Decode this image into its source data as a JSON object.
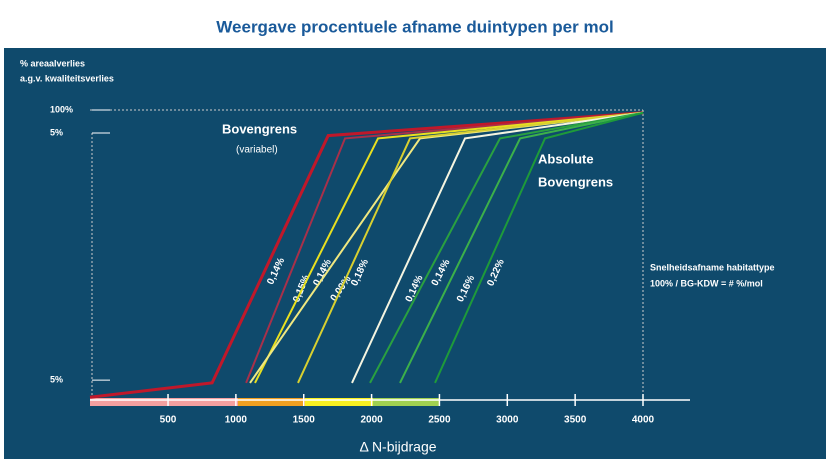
{
  "chart_data": {
    "type": "line",
    "title": "Weergave procentuele afname duintypen per mol",
    "y_label": [
      "% areaalverlies",
      "a.g.v. kwaliteitsverlies"
    ],
    "x_label": "Δ N-bijdrage",
    "annotations": [
      "Bovengrens",
      "(variabel)",
      "Absolute",
      "Bovengrens",
      "Snelheidsafname habitattype",
      "100% / BG-KDW =  # %/mol",
      "5%"
    ],
    "xlim": [
      -75,
      4000
    ],
    "xticks": [
      500,
      1000,
      1500,
      2000,
      2500,
      3000,
      3500,
      4000
    ],
    "ylim": [
      -2,
      100
    ],
    "yticks": [
      {
        "value": 5,
        "label": "5%"
      },
      {
        "value": 100,
        "label": "100%"
      }
    ],
    "series": [
      {
        "name": "0,14%",
        "color": "#c0182a",
        "x": [
          -75,
          825,
          1680,
          4000
        ],
        "values": [
          -1,
          4,
          91,
          99
        ]
      },
      {
        "name": "0,15%",
        "color": "#a8304a",
        "x": [
          1075,
          1804,
          4000
        ],
        "values": [
          4,
          90,
          99
        ]
      },
      {
        "name": "0,14%",
        "color": "#e8e020",
        "x": [
          1141,
          2047,
          4000
        ],
        "values": [
          4,
          90,
          99
        ]
      },
      {
        "name": "0,09%",
        "color": "#f0e880",
        "x": [
          1104,
          2357,
          4000
        ],
        "values": [
          4,
          90,
          99
        ]
      },
      {
        "name": "0,18%",
        "color": "#d8d030",
        "x": [
          1458,
          2283,
          4000
        ],
        "values": [
          4,
          90,
          99
        ]
      },
      {
        "name": "0,14%",
        "color": "#f4f4e0",
        "x": [
          1856,
          2688,
          4000
        ],
        "values": [
          4,
          90,
          99
        ]
      },
      {
        "name": "0,14%",
        "color": "#2aa040",
        "x": [
          1988,
          2946,
          4000
        ],
        "values": [
          4,
          90,
          99
        ]
      },
      {
        "name": "0,16%",
        "color": "#3cb04a",
        "x": [
          2209,
          3094,
          4000
        ],
        "values": [
          4,
          90,
          99
        ]
      },
      {
        "name": "0,22%",
        "color": "#1e9a3a",
        "x": [
          2467,
          3278,
          4000
        ],
        "values": [
          4,
          90,
          99
        ]
      }
    ]
  }
}
